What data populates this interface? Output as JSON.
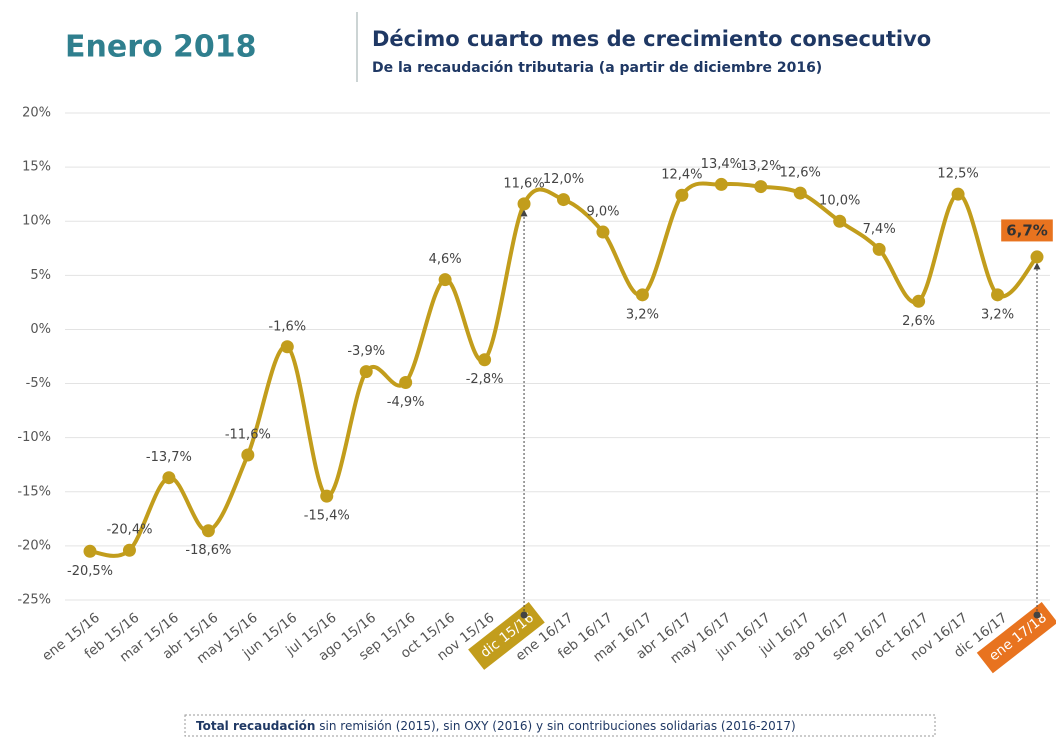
{
  "header": "Enero 2018",
  "chart_data": {
    "type": "line",
    "title": "Décimo cuarto mes de crecimiento consecutivo",
    "subtitle": "De la recaudación tributaria (a partir de diciembre 2016)",
    "categories": [
      "ene 15/16",
      "feb 15/16",
      "mar 15/16",
      "abr 15/16",
      "may 15/16",
      "jun 15/16",
      "jul 15/16",
      "ago 15/16",
      "sep 15/16",
      "oct 15/16",
      "nov 15/16",
      "dic 15/16",
      "ene 16/17",
      "feb 16/17",
      "mar 16/17",
      "abr 16/17",
      "may 16/17",
      "jun 16/17",
      "jul 16/17",
      "ago 16/17",
      "sep 16/17",
      "oct 16/17",
      "nov 16/17",
      "dic 16/17",
      "ene 17/18"
    ],
    "series": [
      {
        "name": "Total recaudación",
        "color": "#c29d1c",
        "values": [
          -20.5,
          -20.4,
          -13.7,
          -18.6,
          -11.6,
          -1.6,
          -15.4,
          -3.9,
          -4.9,
          4.6,
          -2.8,
          11.6,
          12.0,
          9.0,
          3.2,
          12.4,
          13.4,
          13.2,
          12.6,
          10.0,
          7.4,
          2.6,
          12.5,
          3.2,
          6.7
        ],
        "value_labels": [
          "-20,5%",
          "-20,4%",
          "-13,7%",
          "-18,6%",
          "-11,6%",
          "-1,6%",
          "-15,4%",
          "-3,9%",
          "-4,9%",
          "4,6%",
          "-2,8%",
          "11,6%",
          "12,0%",
          "9,0%",
          "3,2%",
          "12,4%",
          "13,4%",
          "13,2%",
          "12,6%",
          "10,0%",
          "7,4%",
          "2,6%",
          "12,5%",
          "3,2%",
          "6,7%"
        ]
      }
    ],
    "highlights": [
      {
        "index": 11,
        "color": "#c29d1c"
      },
      {
        "index": 24,
        "color": "#e8731f"
      }
    ],
    "ylim": [
      -25,
      20
    ],
    "yticks": [
      {
        "value": -25,
        "label": "-25%"
      },
      {
        "value": -20,
        "label": "-20%"
      },
      {
        "value": -15,
        "label": "-15%"
      },
      {
        "value": -10,
        "label": "-10%"
      },
      {
        "value": -5,
        "label": "-5%"
      },
      {
        "value": 0,
        "label": "0%"
      },
      {
        "value": 5,
        "label": "5%"
      },
      {
        "value": 10,
        "label": "10%"
      },
      {
        "value": 15,
        "label": "15%"
      },
      {
        "value": 20,
        "label": "20%"
      }
    ],
    "grid": true,
    "footnote_bold": "Total recaudación",
    "footnote": " sin remisión (2015), sin OXY (2016) y sin contribuciones solidarias (2016-2017)"
  }
}
